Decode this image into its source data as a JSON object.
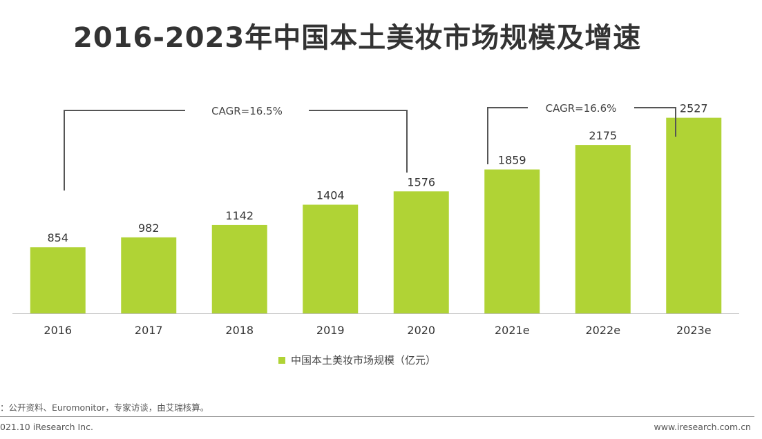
{
  "title": "2016-2023年中国本土美妆市场规模及增速",
  "chart_data": {
    "type": "bar",
    "categories": [
      "2016",
      "2017",
      "2018",
      "2019",
      "2020",
      "2021e",
      "2022e",
      "2023e"
    ],
    "values": [
      854,
      982,
      1142,
      1404,
      1576,
      1859,
      2175,
      2527
    ],
    "series_name": "中国本土美妆市场规模（亿元）",
    "ylim": [
      0,
      2800
    ],
    "color": "#b0d335",
    "annotations": [
      {
        "label": "CAGR=16.5%",
        "from": "2016",
        "to": "2020"
      },
      {
        "label": "CAGR=16.6%",
        "from": "2021e",
        "to": "2023e"
      }
    ]
  },
  "source": "：公开资料、Euromonitor，专家访谈，由艾瑞核算。",
  "footer": {
    "left": "021.10 iResearch Inc.",
    "right": "www.iresearch.com.cn"
  }
}
